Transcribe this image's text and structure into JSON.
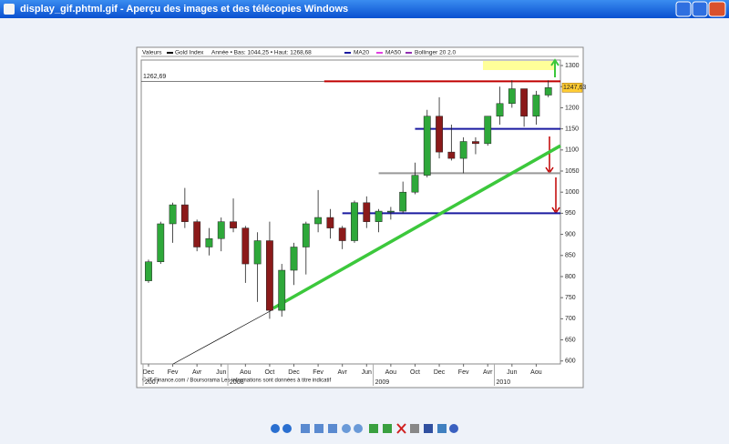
{
  "window": {
    "title": "display_gif.phtml.gif - Aperçu des images et des télécopies Windows"
  },
  "header": {
    "series_label": "Valeurs",
    "instrument": "Gold Index",
    "range": "Année • Bas: 1044,25 • Haut: 1268,68",
    "ma20": "MA20",
    "ma50": "MA50",
    "bollinger": "Bollinger 20 2.0"
  },
  "footer": "© IT-Finance.com / Boursorama Les informations sont données à titre indicatif",
  "chart_data": {
    "type": "candlestick",
    "x": [
      0,
      1,
      2,
      3,
      4,
      5,
      6,
      7,
      8,
      9,
      10,
      11,
      12,
      13,
      14,
      15,
      16,
      17,
      18,
      19,
      20,
      21,
      22,
      23,
      24,
      25,
      26,
      27,
      28,
      29,
      30,
      31,
      32,
      33
    ],
    "open": [
      790,
      835,
      925,
      970,
      930,
      870,
      890,
      930,
      915,
      830,
      885,
      720,
      815,
      870,
      925,
      940,
      915,
      885,
      975,
      930,
      955,
      955,
      1000,
      1040,
      1180,
      1095,
      1080,
      1120,
      1115,
      1180,
      1210,
      1245,
      1180,
      1230
    ],
    "high": [
      840,
      930,
      975,
      1010,
      935,
      915,
      940,
      985,
      920,
      905,
      930,
      830,
      880,
      930,
      1005,
      960,
      920,
      980,
      990,
      960,
      965,
      1025,
      1070,
      1195,
      1225,
      1160,
      1130,
      1130,
      1180,
      1250,
      1265,
      1245,
      1240,
      1265
    ],
    "low": [
      785,
      830,
      880,
      915,
      860,
      850,
      860,
      905,
      785,
      740,
      700,
      705,
      780,
      805,
      905,
      890,
      865,
      880,
      915,
      905,
      935,
      950,
      995,
      1035,
      1080,
      1075,
      1045,
      1090,
      1110,
      1160,
      1200,
      1155,
      1160,
      1225
    ],
    "close": [
      835,
      925,
      970,
      930,
      870,
      890,
      930,
      915,
      830,
      885,
      720,
      815,
      870,
      925,
      940,
      915,
      885,
      975,
      930,
      955,
      955,
      1000,
      1040,
      1180,
      1095,
      1080,
      1120,
      1115,
      1180,
      1210,
      1245,
      1180,
      1230,
      1247.63
    ],
    "last_label": "1247,63",
    "up_color": "#2ea83a",
    "down_color": "#8b1a1a",
    "xlim": [
      -0.6,
      34
    ],
    "xticks": [
      {
        "value": 0,
        "label": "Dec"
      },
      {
        "value": 2,
        "label": "Fev"
      },
      {
        "value": 4,
        "label": "Avr"
      },
      {
        "value": 6,
        "label": "Jun"
      },
      {
        "value": 8,
        "label": "Aou"
      },
      {
        "value": 10,
        "label": "Oct"
      },
      {
        "value": 12,
        "label": "Dec"
      },
      {
        "value": 14,
        "label": "Fev"
      },
      {
        "value": 16,
        "label": "Avr"
      },
      {
        "value": 18,
        "label": "Jun"
      },
      {
        "value": 20,
        "label": "Aou"
      },
      {
        "value": 22,
        "label": "Oct"
      },
      {
        "value": 24,
        "label": "Dec"
      },
      {
        "value": 26,
        "label": "Fev"
      },
      {
        "value": 28,
        "label": "Avr"
      },
      {
        "value": 30,
        "label": "Jun"
      },
      {
        "value": 32,
        "label": "Aou"
      }
    ],
    "year_ticks": [
      {
        "value": 0,
        "label": "2007"
      },
      {
        "value": 7,
        "label": "2008"
      },
      {
        "value": 19,
        "label": "2009"
      },
      {
        "value": 29,
        "label": "2010"
      }
    ],
    "ylim": [
      593,
      1313
    ],
    "yticks": [
      600,
      650,
      700,
      750,
      800,
      850,
      900,
      950,
      1000,
      1050,
      1100,
      1150,
      1200,
      1250,
      1300
    ],
    "levels": [
      {
        "value": 1262.69,
        "label": "1262,69",
        "color": "#c00000"
      },
      {
        "value": 1150,
        "color": "#1a1aa0"
      },
      {
        "value": 1045,
        "color": "#999999"
      },
      {
        "value": 950,
        "color": "#1a1aa0"
      }
    ],
    "trendline": {
      "x": [
        10.3,
        34
      ],
      "y": [
        725,
        1110
      ],
      "color": "#3cc83c"
    }
  }
}
